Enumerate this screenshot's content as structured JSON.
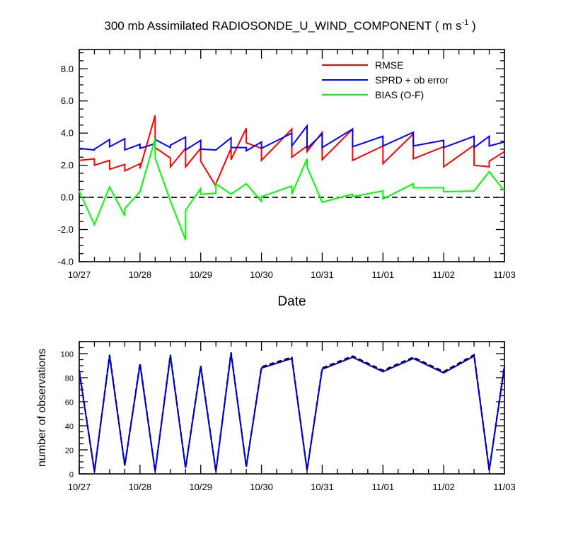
{
  "title": "300 mb Assimilated RADIOSONDE_U_WIND_COMPONENT",
  "title_unit_prefix": "( m s",
  "title_unit_exp": "-1",
  "title_unit_suffix": " )",
  "colors": {
    "rmse": "#ff0000",
    "sprd": "#0000ff",
    "bias": "#00ff00",
    "axis": "#000000",
    "obs_dashed": "#000000",
    "obs_solid": "#0000cc"
  },
  "chart_data": [
    {
      "type": "line",
      "xlabel": "Date",
      "ylabel": "",
      "xlim": [
        0,
        7
      ],
      "ylim": [
        -4,
        9.2
      ],
      "x_ticks": [
        0,
        1,
        2,
        3,
        4,
        5,
        6,
        7
      ],
      "x_tick_labels": [
        "10/27",
        "10/28",
        "10/29",
        "10/30",
        "10/31",
        "11/01",
        "11/02",
        "11/03"
      ],
      "y_ticks": [
        -4,
        -2,
        0,
        2,
        4,
        6,
        8
      ],
      "y_tick_labels": [
        "-4.0",
        "-2.0",
        "0.0",
        "2.0",
        "4.0",
        "6.0",
        "8.0"
      ],
      "zero_line": "dashed",
      "legend_position": "top-right",
      "series": [
        {
          "name": "RMSE",
          "color": "#ff0000",
          "points": [
            [
              0,
              2.3
            ],
            [
              0.25,
              2.4
            ],
            [
              0.25,
              2.0
            ],
            [
              0.5,
              2.3
            ],
            [
              0.5,
              1.75
            ],
            [
              0.75,
              2.05
            ],
            [
              0.75,
              1.65
            ],
            [
              1,
              2.1
            ],
            [
              1,
              1.8
            ],
            [
              1.25,
              5.1
            ],
            [
              1.25,
              3.1
            ],
            [
              1.5,
              2.45
            ],
            [
              1.5,
              1.9
            ],
            [
              1.75,
              3.05
            ],
            [
              1.75,
              1.9
            ],
            [
              2,
              3.05
            ],
            [
              2,
              2.25
            ],
            [
              2.25,
              0.7
            ],
            [
              2.25,
              0.85
            ],
            [
              2.5,
              3.05
            ],
            [
              2.5,
              2.35
            ],
            [
              2.75,
              4.3
            ],
            [
              2.75,
              3.4
            ],
            [
              3,
              3.05
            ],
            [
              3,
              2.3
            ],
            [
              3.5,
              4.25
            ],
            [
              3.5,
              2.5
            ],
            [
              3.75,
              3.2
            ],
            [
              3.75,
              2.85
            ],
            [
              4,
              4.05
            ],
            [
              4,
              2.35
            ],
            [
              4.5,
              4.25
            ],
            [
              4.5,
              2.3
            ],
            [
              5,
              3.2
            ],
            [
              5,
              2.1
            ],
            [
              5.5,
              3.95
            ],
            [
              5.5,
              2.4
            ],
            [
              6,
              3.15
            ],
            [
              6,
              1.9
            ],
            [
              6.5,
              3.25
            ],
            [
              6.5,
              2.0
            ],
            [
              6.75,
              1.9
            ],
            [
              6.75,
              2.25
            ],
            [
              7,
              2.85
            ]
          ]
        },
        {
          "name": "SPRD + ob error",
          "color": "#0000ff",
          "points": [
            [
              0,
              3.05
            ],
            [
              0.25,
              2.95
            ],
            [
              0.25,
              3.0
            ],
            [
              0.5,
              3.6
            ],
            [
              0.5,
              3.15
            ],
            [
              0.75,
              3.65
            ],
            [
              0.75,
              2.95
            ],
            [
              1,
              3.3
            ],
            [
              1,
              3.05
            ],
            [
              1.25,
              3.35
            ],
            [
              1.25,
              3.6
            ],
            [
              1.5,
              3.1
            ],
            [
              1.5,
              3.25
            ],
            [
              1.75,
              3.75
            ],
            [
              1.75,
              2.95
            ],
            [
              2,
              3.55
            ],
            [
              2,
              3.0
            ],
            [
              2.25,
              2.95
            ],
            [
              2.25,
              2.95
            ],
            [
              2.5,
              3.7
            ],
            [
              2.5,
              3.1
            ],
            [
              2.75,
              3.1
            ],
            [
              2.75,
              2.9
            ],
            [
              3,
              3.45
            ],
            [
              3,
              3.05
            ],
            [
              3.5,
              4.0
            ],
            [
              3.5,
              3.2
            ],
            [
              3.75,
              4.45
            ],
            [
              3.75,
              3.05
            ],
            [
              4,
              3.95
            ],
            [
              4,
              3.1
            ],
            [
              4.5,
              4.25
            ],
            [
              4.5,
              3.15
            ],
            [
              5,
              3.8
            ],
            [
              5,
              3.2
            ],
            [
              5.5,
              4.05
            ],
            [
              5.5,
              3.2
            ],
            [
              6,
              3.55
            ],
            [
              6,
              3.1
            ],
            [
              6.5,
              3.8
            ],
            [
              6.5,
              3.1
            ],
            [
              6.75,
              3.8
            ],
            [
              6.75,
              3.2
            ],
            [
              7,
              3.45
            ]
          ]
        },
        {
          "name": "BIAS (O-F)",
          "color": "#00ff00",
          "points": [
            [
              0,
              0.4
            ],
            [
              0.25,
              -1.7
            ],
            [
              0.5,
              0.65
            ],
            [
              0.75,
              -1.15
            ],
            [
              0.75,
              -0.7
            ],
            [
              1,
              0.35
            ],
            [
              1.25,
              3.65
            ],
            [
              1.25,
              2.45
            ],
            [
              1.5,
              -0.2
            ],
            [
              1.75,
              -2.65
            ],
            [
              1.75,
              -0.8
            ],
            [
              2,
              0.55
            ],
            [
              2,
              0.2
            ],
            [
              2.25,
              0.25
            ],
            [
              2.25,
              0.85
            ],
            [
              2.5,
              0.2
            ],
            [
              2.75,
              0.85
            ],
            [
              3,
              -0.25
            ],
            [
              3,
              0.05
            ],
            [
              3.5,
              0.7
            ],
            [
              3.5,
              0.2
            ],
            [
              3.75,
              2.4
            ],
            [
              3.75,
              1.9
            ],
            [
              4,
              -0.3
            ],
            [
              4.5,
              0.2
            ],
            [
              4.5,
              0.05
            ],
            [
              5,
              0.4
            ],
            [
              5,
              -0.1
            ],
            [
              5.5,
              0.85
            ],
            [
              5.5,
              0.6
            ],
            [
              6,
              0.6
            ],
            [
              6,
              0.35
            ],
            [
              6.5,
              0.4
            ],
            [
              6.75,
              1.6
            ],
            [
              7,
              0.4
            ]
          ]
        }
      ]
    },
    {
      "type": "line",
      "xlabel": "",
      "ylabel": "number of observations",
      "xlim": [
        0,
        7
      ],
      "ylim": [
        0,
        110
      ],
      "x_ticks": [
        0,
        1,
        2,
        3,
        4,
        5,
        6,
        7
      ],
      "x_tick_labels": [
        "10/27",
        "10/28",
        "10/29",
        "10/30",
        "10/31",
        "11/01",
        "11/02",
        "11/03"
      ],
      "y_ticks": [
        0,
        20,
        40,
        60,
        80,
        100
      ],
      "y_tick_labels": [
        "0",
        "20",
        "40",
        "60",
        "80",
        "100"
      ],
      "series": [
        {
          "color": "#000000",
          "style": "dashed",
          "points": [
            [
              0,
              86
            ],
            [
              0.25,
              2
            ],
            [
              0.5,
              99
            ],
            [
              0.75,
              7
            ],
            [
              1,
              92
            ],
            [
              1.25,
              2
            ],
            [
              1.5,
              99
            ],
            [
              1.75,
              5
            ],
            [
              2,
              90
            ],
            [
              2.25,
              2
            ],
            [
              2.5,
              101
            ],
            [
              2.75,
              6
            ],
            [
              3,
              89
            ],
            [
              3.5,
              97
            ],
            [
              3.75,
              3
            ],
            [
              4,
              88
            ],
            [
              4.5,
              98
            ],
            [
              5,
              86
            ],
            [
              5.5,
              97
            ],
            [
              6,
              85
            ],
            [
              6.5,
              99
            ],
            [
              6.75,
              3
            ],
            [
              7,
              90
            ]
          ]
        },
        {
          "color": "#0000cc",
          "style": "solid",
          "points": [
            [
              0,
              85
            ],
            [
              0.25,
              2
            ],
            [
              0.5,
              98
            ],
            [
              0.75,
              7
            ],
            [
              1,
              91
            ],
            [
              1.25,
              2
            ],
            [
              1.5,
              98
            ],
            [
              1.75,
              5
            ],
            [
              2,
              89
            ],
            [
              2.25,
              2
            ],
            [
              2.5,
              100
            ],
            [
              2.75,
              6
            ],
            [
              3,
              88
            ],
            [
              3.5,
              96
            ],
            [
              3.75,
              3
            ],
            [
              4,
              87
            ],
            [
              4.5,
              97
            ],
            [
              5,
              85
            ],
            [
              5.5,
              96
            ],
            [
              6,
              84
            ],
            [
              6.5,
              98
            ],
            [
              6.75,
              3
            ],
            [
              7,
              89
            ]
          ]
        }
      ]
    }
  ]
}
